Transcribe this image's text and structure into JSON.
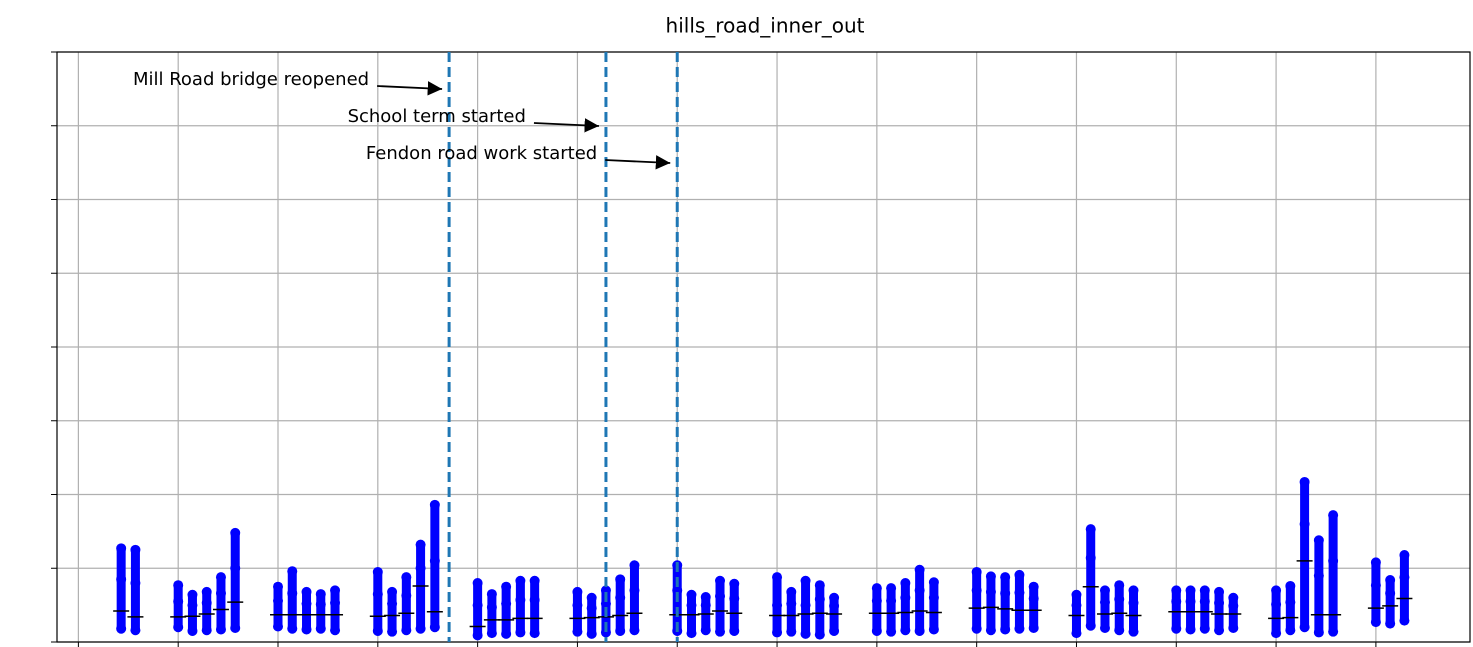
{
  "chart_data": {
    "type": "strip",
    "title": "hills_road_inner_out",
    "color": "#0000ff",
    "median_color": "#000000",
    "event_color": "#1f77b4",
    "grid": true,
    "xlim": [
      -1.5,
      97.6
    ],
    "xticks": [
      0,
      7,
      14,
      21,
      28,
      35,
      42,
      49,
      56,
      63,
      70,
      77,
      84,
      91
    ],
    "ylim": [
      0,
      80
    ],
    "yticks": [
      0,
      10,
      20,
      30,
      40,
      50,
      60,
      70,
      80
    ],
    "x": [
      3,
      4,
      7,
      8,
      9,
      10,
      11,
      14,
      15,
      16,
      17,
      18,
      21,
      22,
      23,
      24,
      25,
      28,
      29,
      30,
      31,
      32,
      35,
      36,
      37,
      38,
      39,
      42,
      43,
      44,
      45,
      46,
      49,
      50,
      51,
      52,
      53,
      56,
      57,
      58,
      59,
      60,
      63,
      64,
      65,
      66,
      67,
      70,
      71,
      72,
      73,
      74,
      77,
      78,
      79,
      80,
      81,
      84,
      85,
      86,
      87,
      88,
      91,
      92,
      93
    ],
    "values": [
      [
        1.8,
        8.5,
        12.7
      ],
      [
        1.6,
        8,
        12.5
      ],
      [
        2,
        5.5,
        7.7
      ],
      [
        1.5,
        5,
        6.4
      ],
      [
        1.6,
        5.3,
        6.8
      ],
      [
        1.7,
        6.6,
        8.8
      ],
      [
        1.9,
        10,
        14.8
      ],
      [
        2.1,
        5.6,
        7.5
      ],
      [
        1.8,
        6.6,
        9.6
      ],
      [
        1.7,
        5.2,
        6.8
      ],
      [
        1.8,
        5.1,
        6.5
      ],
      [
        1.6,
        5.3,
        7
      ],
      [
        1.5,
        6.5,
        9.5
      ],
      [
        1.4,
        5.2,
        6.8
      ],
      [
        1.6,
        6.3,
        8.8
      ],
      [
        1.8,
        10,
        13.2
      ],
      [
        2,
        11,
        18.6
      ],
      [
        0.9,
        5,
        8
      ],
      [
        1.2,
        4.7,
        6.5
      ],
      [
        1.1,
        5.2,
        7.5
      ],
      [
        1.3,
        5.7,
        8.3
      ],
      [
        1.2,
        5.7,
        8.3
      ],
      [
        1.4,
        5,
        6.8
      ],
      [
        1.1,
        4.6,
        6
      ],
      [
        1.3,
        5.2,
        7
      ],
      [
        1.5,
        6,
        8.5
      ],
      [
        1.6,
        7,
        10.4
      ],
      [
        1.5,
        7,
        10.4
      ],
      [
        1.2,
        5,
        6.4
      ],
      [
        1.6,
        5,
        6.1
      ],
      [
        1.4,
        6.2,
        8.3
      ],
      [
        1.5,
        5.9,
        7.9
      ],
      [
        1.3,
        5,
        8.8
      ],
      [
        1.4,
        5.2,
        6.8
      ],
      [
        1.1,
        5,
        8.3
      ],
      [
        1,
        5.8,
        7.7
      ],
      [
        1.5,
        4.9,
        6
      ],
      [
        1.5,
        5.6,
        7.3
      ],
      [
        1.4,
        5.6,
        7.3
      ],
      [
        1.6,
        6,
        8
      ],
      [
        1.5,
        7,
        9.8
      ],
      [
        1.7,
        6,
        8.1
      ],
      [
        1.8,
        7,
        9.5
      ],
      [
        1.6,
        6.8,
        8.9
      ],
      [
        1.7,
        6.6,
        8.8
      ],
      [
        1.8,
        6.7,
        9.1
      ],
      [
        1.9,
        5.9,
        7.5
      ],
      [
        1.2,
        5,
        6.4
      ],
      [
        2.2,
        11.4,
        15.3
      ],
      [
        1.9,
        5.4,
        7
      ],
      [
        1.6,
        5.8,
        7.7
      ],
      [
        1.4,
        5.3,
        7
      ],
      [
        1.8,
        5.5,
        7
      ],
      [
        1.7,
        5.5,
        7
      ],
      [
        1.8,
        5.5,
        7
      ],
      [
        1.6,
        5.3,
        6.8
      ],
      [
        1.9,
        4.9,
        6
      ],
      [
        1.2,
        5.1,
        7
      ],
      [
        1.6,
        5.4,
        7.6
      ],
      [
        2,
        16,
        21.7
      ],
      [
        1.3,
        9,
        13.8
      ],
      [
        1.4,
        11,
        17.2
      ],
      [
        2.7,
        7.7,
        10.8
      ],
      [
        2.5,
        6.6,
        8.4
      ],
      [
        2.9,
        8.8,
        11.8
      ]
    ],
    "medians": [
      4.2,
      3.4,
      3.4,
      3.5,
      3.8,
      4.4,
      5.4,
      3.7,
      3.7,
      3.7,
      3.7,
      3.7,
      3.5,
      3.6,
      3.9,
      7.6,
      4.1,
      2.1,
      3,
      3,
      3.2,
      3.2,
      3.2,
      3.3,
      3.4,
      3.6,
      3.9,
      3.7,
      3.7,
      3.8,
      4.2,
      3.9,
      3.6,
      3.6,
      3.8,
      3.9,
      3.8,
      3.9,
      3.9,
      4,
      4.2,
      4,
      4.6,
      4.7,
      4.5,
      4.3,
      4.3,
      3.6,
      7.5,
      3.8,
      3.9,
      3.6,
      4.1,
      4.1,
      4.1,
      3.8,
      3.8,
      3.2,
      3.3,
      11,
      3.7,
      3.7,
      4.6,
      4.9,
      5.9
    ],
    "events": [
      {
        "label": "Mill Road bridge reopened",
        "x": 26
      },
      {
        "label": "School term started",
        "x": 37
      },
      {
        "label": "Fendon road work started",
        "x": 42
      }
    ]
  }
}
